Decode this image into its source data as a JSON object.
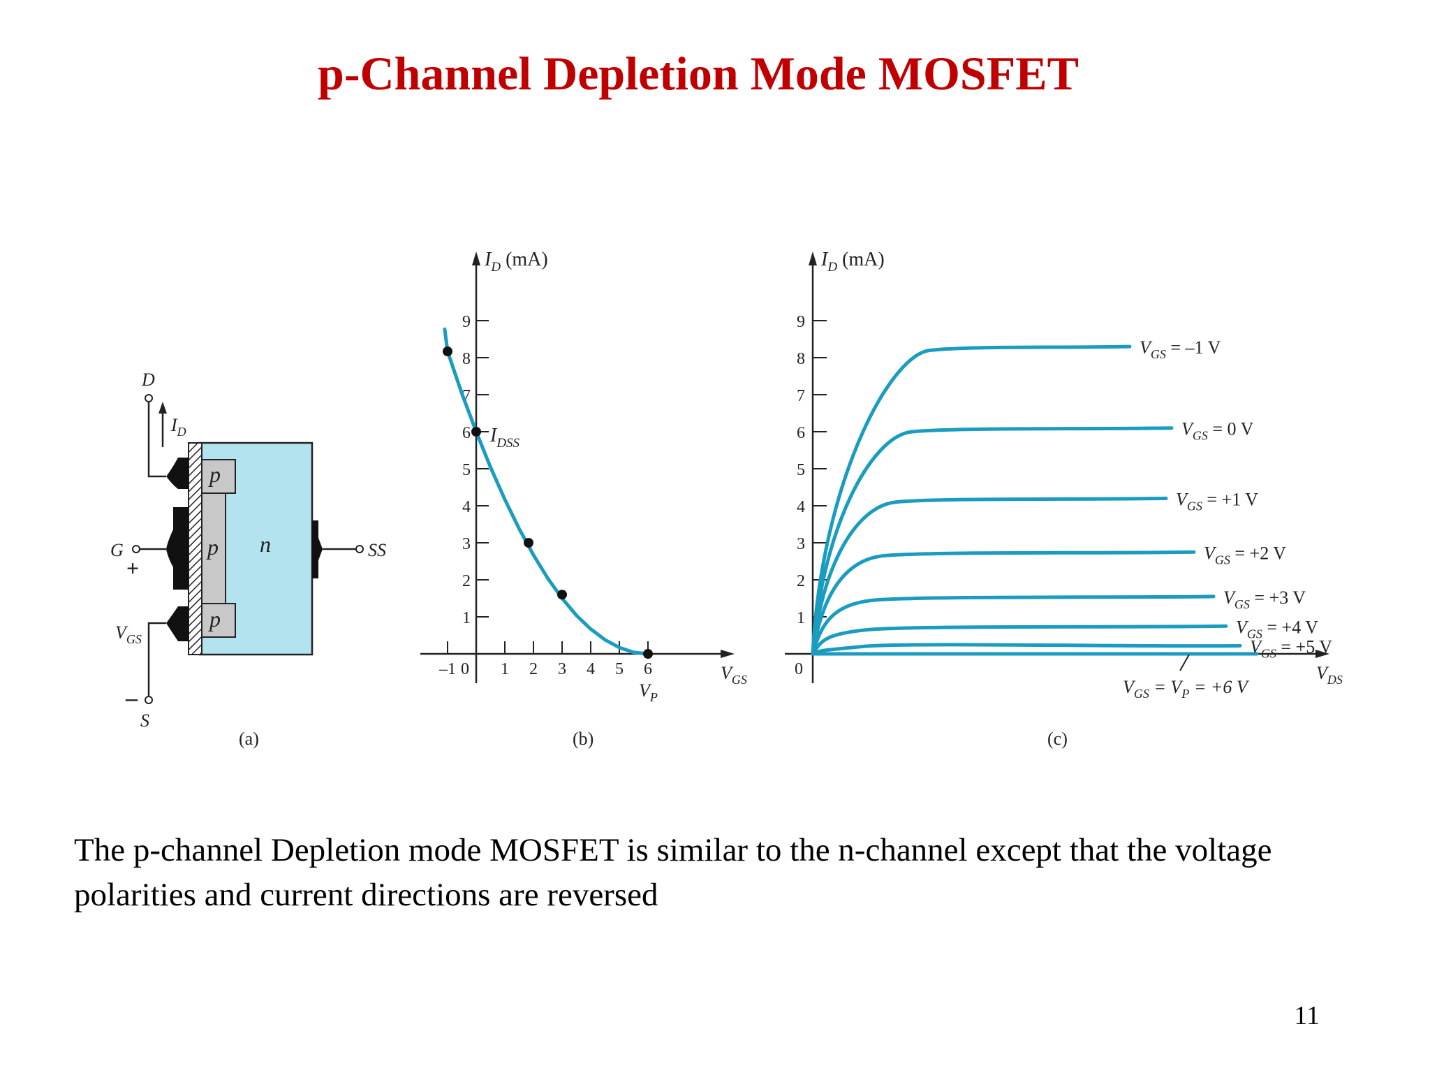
{
  "title": "p-Channel Depletion Mode MOSFET",
  "caption": "The p-channel Depletion mode MOSFET is similar to the  n-channel except that the voltage polarities and current directions are reversed",
  "page_number": "11",
  "colors": {
    "title": "#c00000",
    "curve": "#1a9cc0",
    "n_substrate": "#b3e3ef",
    "p_region": "#c8c8c8"
  },
  "figure_a": {
    "label": "(a)",
    "terminal_drain": "D",
    "terminal_gate": "G",
    "terminal_source": "S",
    "terminal_substrate": "SS",
    "current_label": "I",
    "current_sub": "D",
    "region_p_top": "p",
    "region_p_channel": "p",
    "region_p_bottom": "p",
    "region_n": "n",
    "vgs_label": "V",
    "vgs_sub": "GS",
    "plus": "+",
    "minus": "–"
  },
  "chart_b": {
    "label": "(b)",
    "ylabel_main": "I",
    "ylabel_sub": "D",
    "ylabel_unit": " (mA)",
    "xlabel_main": "V",
    "xlabel_sub": "GS",
    "idss_main": "I",
    "idss_sub": "DSS",
    "vp_main": "V",
    "vp_sub": "P",
    "zero_label": "0"
  },
  "chart_c": {
    "label": "(c)",
    "ylabel_main": "I",
    "ylabel_sub": "D",
    "ylabel_unit": " (mA)",
    "xlabel_main": "V",
    "xlabel_sub": "DS",
    "origin_label": "0",
    "pinch_label": {
      "prefix": "V",
      "sub1": "GS",
      "mid": " = V",
      "sub2": "P",
      "suffix": " = +6 V"
    }
  },
  "chart_data": [
    {
      "type": "line",
      "panel": "(b)",
      "xlabel": "VGS",
      "ylabel": "ID (mA)",
      "xlim": [
        -1,
        6
      ],
      "ylim": [
        0,
        9
      ],
      "x_ticks": [
        -1,
        1,
        2,
        3,
        4,
        5,
        6
      ],
      "x_tick_labels": [
        "–1",
        "1",
        "2",
        "3",
        "4",
        "5",
        "6"
      ],
      "y_ticks": [
        1,
        2,
        3,
        4,
        5,
        6,
        7,
        8,
        9
      ],
      "y_tick_labels": [
        "1",
        "2",
        "3",
        "4",
        "5",
        "6",
        "7",
        "8",
        "9"
      ],
      "series": [
        {
          "x": [
            -1.1,
            -1,
            -0.5,
            0,
            0.5,
            1,
            1.5,
            2,
            2.5,
            3,
            3.5,
            4,
            4.5,
            5,
            5.5,
            6
          ],
          "y": [
            8.77,
            8.17,
            7.03,
            6.0,
            5.04,
            4.17,
            3.38,
            2.67,
            2.04,
            1.5,
            1.04,
            0.67,
            0.38,
            0.17,
            0.04,
            0
          ]
        }
      ],
      "points": [
        {
          "x": -1,
          "y": 8.17
        },
        {
          "x": 0,
          "y": 6.0,
          "label": "IDSS"
        },
        {
          "x": 1.83,
          "y": 3.0
        },
        {
          "x": 3,
          "y": 1.6
        },
        {
          "x": 6,
          "y": 0,
          "label": "VP"
        }
      ]
    },
    {
      "type": "line",
      "panel": "(c)",
      "xlabel": "VDS",
      "ylabel": "ID (mA)",
      "ylim": [
        0,
        9
      ],
      "y_ticks": [
        1,
        2,
        3,
        4,
        5,
        6,
        7,
        8,
        9
      ],
      "y_tick_labels": [
        "1",
        "2",
        "3",
        "4",
        "5",
        "6",
        "7",
        "8",
        "9"
      ],
      "series": [
        {
          "label_prefix": "V",
          "label_sub": "GS",
          "label_suffix": " = –1 V",
          "saturation_mA": 8.2,
          "end_mA": 8.3
        },
        {
          "label_prefix": "V",
          "label_sub": "GS",
          "label_suffix": " = 0 V",
          "saturation_mA": 6.0,
          "end_mA": 6.1
        },
        {
          "label_prefix": "V",
          "label_sub": "GS",
          "label_suffix": " = +1 V",
          "saturation_mA": 4.1,
          "end_mA": 4.2
        },
        {
          "label_prefix": "V",
          "label_sub": "GS",
          "label_suffix": " = +2 V",
          "saturation_mA": 2.65,
          "end_mA": 2.75
        },
        {
          "label_prefix": "V",
          "label_sub": "GS",
          "label_suffix": " = +3 V",
          "saturation_mA": 1.45,
          "end_mA": 1.55
        },
        {
          "label_prefix": "V",
          "label_sub": "GS",
          "label_suffix": " = +4 V",
          "saturation_mA": 0.65,
          "end_mA": 0.75
        },
        {
          "label_prefix": "V",
          "label_sub": "GS",
          "label_suffix": " = +5 V",
          "saturation_mA": 0.2,
          "end_mA": 0.22
        },
        {
          "saturation_mA": 0,
          "end_mA": 0
        }
      ]
    }
  ]
}
